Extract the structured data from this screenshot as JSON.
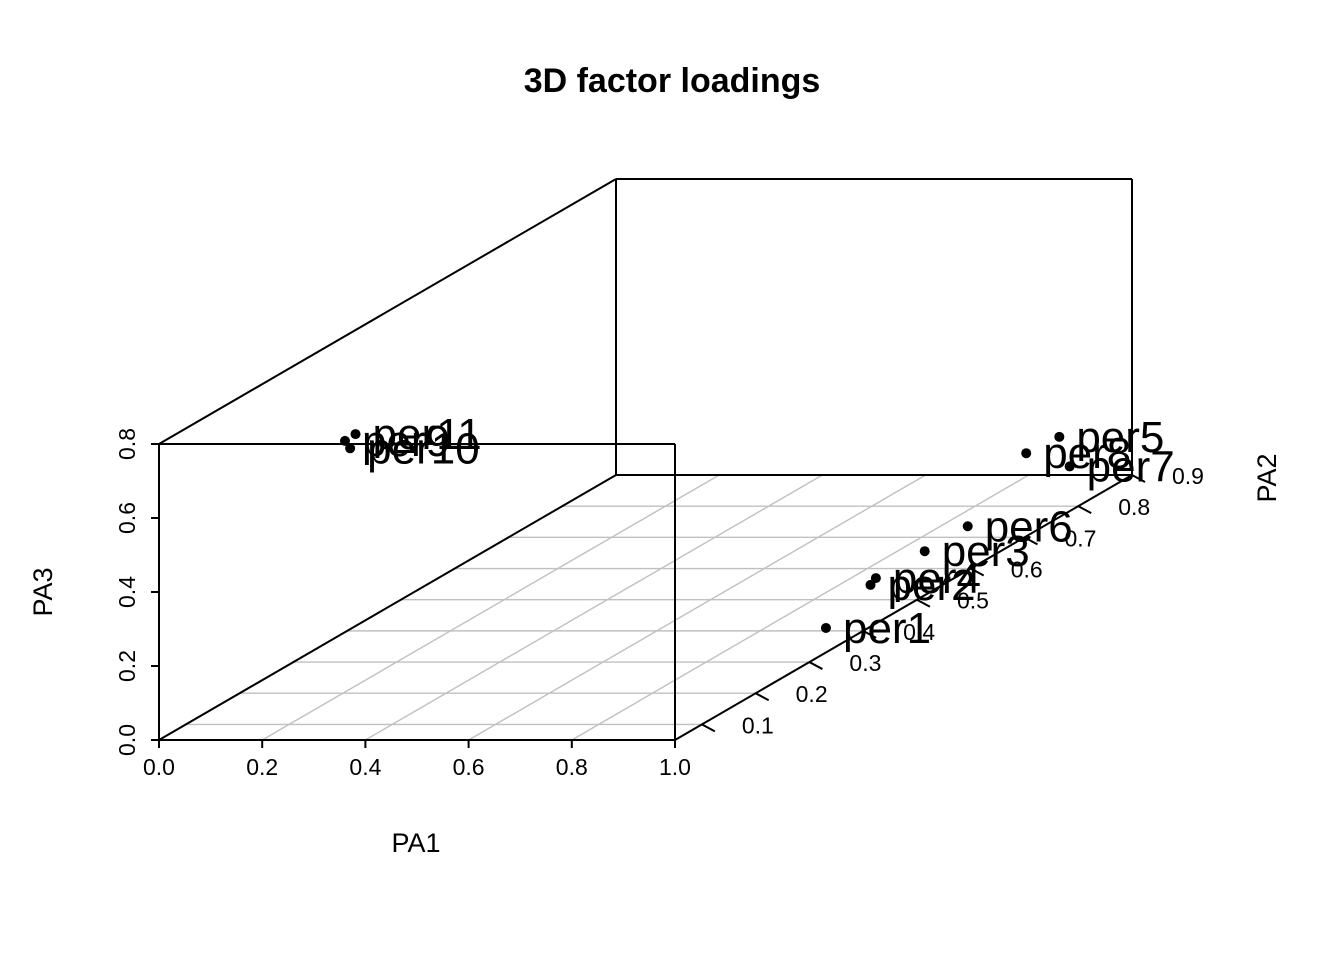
{
  "chart_data": {
    "type": "scatter",
    "title": "3D factor loadings",
    "xlabel": "PA1",
    "ylabel": "PA2",
    "zlabel": "PA3",
    "xlim": [
      0.0,
      1.0
    ],
    "ylim": [
      0.05,
      0.9
    ],
    "zlim": [
      0.0,
      0.8
    ],
    "x_ticks": [
      "0.0",
      "0.2",
      "0.4",
      "0.6",
      "0.8",
      "1.0"
    ],
    "y_ticks": [
      "0.1",
      "0.2",
      "0.3",
      "0.4",
      "0.5",
      "0.6",
      "0.7",
      "0.8",
      "0.9"
    ],
    "z_ticks": [
      "0.0",
      "0.2",
      "0.4",
      "0.6",
      "0.8"
    ],
    "grid": true,
    "points": [
      {
        "label": "per1",
        "x": 0.98,
        "y": 0.35,
        "z": 0.05
      },
      {
        "label": "per2",
        "x": 0.91,
        "y": 0.5,
        "z": 0.04
      },
      {
        "label": "per3",
        "x": 0.89,
        "y": 0.62,
        "z": 0.03
      },
      {
        "label": "per4",
        "x": 0.91,
        "y": 0.51,
        "z": 0.05
      },
      {
        "label": "per5",
        "x": 0.88,
        "y": 0.88,
        "z": 0.12
      },
      {
        "label": "per6",
        "x": 0.89,
        "y": 0.7,
        "z": 0.03
      },
      {
        "label": "per7",
        "x": 0.9,
        "y": 0.88,
        "z": 0.04
      },
      {
        "label": "per8",
        "x": 0.92,
        "y": 0.78,
        "z": 0.16
      },
      {
        "label": "per9",
        "x": 0.35,
        "y": 0.06,
        "z": 0.8
      },
      {
        "label": "per10",
        "x": 0.36,
        "y": 0.06,
        "z": 0.78
      },
      {
        "label": "per11",
        "x": 0.36,
        "y": 0.07,
        "z": 0.81
      }
    ]
  }
}
